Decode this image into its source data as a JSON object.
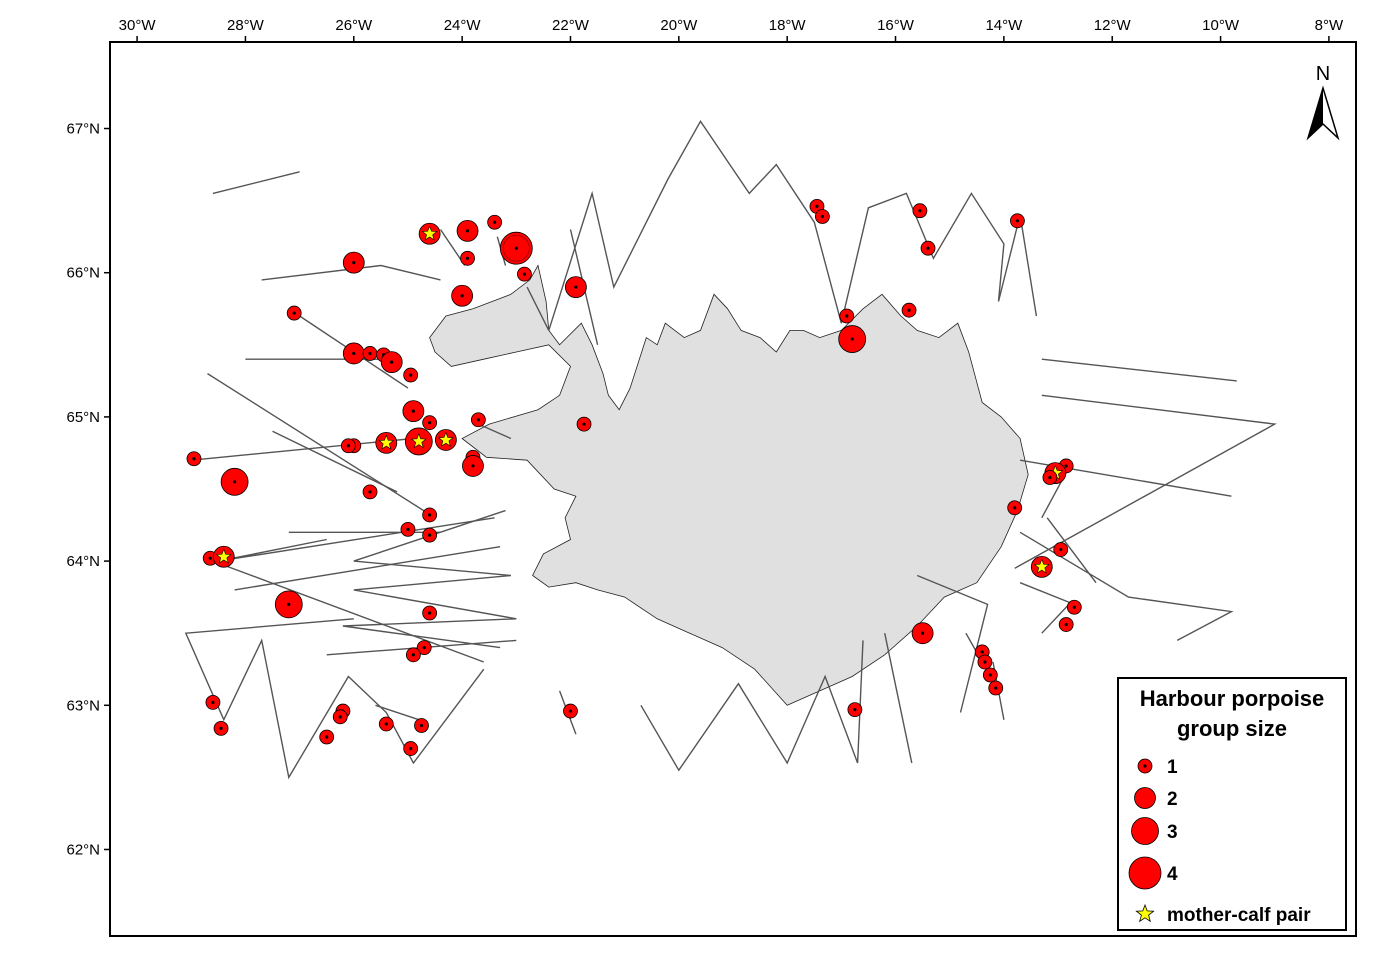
{
  "map": {
    "lon_range": [
      -30.5,
      -7.5
    ],
    "lat_range": [
      61.4,
      67.6
    ],
    "lon_ticks": [
      {
        "value": -30,
        "label": "30°W"
      },
      {
        "value": -28,
        "label": "28°W"
      },
      {
        "value": -26,
        "label": "26°W"
      },
      {
        "value": -24,
        "label": "24°W"
      },
      {
        "value": -22,
        "label": "22°W"
      },
      {
        "value": -20,
        "label": "20°W"
      },
      {
        "value": -18,
        "label": "18°W"
      },
      {
        "value": -16,
        "label": "16°W"
      },
      {
        "value": -14,
        "label": "14°W"
      },
      {
        "value": -12,
        "label": "12°W"
      },
      {
        "value": -10,
        "label": "10°W"
      },
      {
        "value": -8,
        "label": "8°W"
      }
    ],
    "lat_ticks": [
      {
        "value": 62,
        "label": "62°N"
      },
      {
        "value": 63,
        "label": "63°N"
      },
      {
        "value": 64,
        "label": "64°N"
      },
      {
        "value": 65,
        "label": "65°N"
      },
      {
        "value": 66,
        "label": "66°N"
      },
      {
        "value": 67,
        "label": "67°N"
      }
    ],
    "north_label": "N",
    "land_color": "#e0e0e0",
    "track_color": "#555555",
    "marker_color": "#ff0000",
    "star_color": "#ffff00",
    "land": [
      [
        -24.6,
        65.55
      ],
      [
        -24.3,
        65.7
      ],
      [
        -23.8,
        65.75
      ],
      [
        -23.1,
        65.85
      ],
      [
        -22.75,
        65.95
      ],
      [
        -22.6,
        66.05
      ],
      [
        -22.45,
        65.8
      ],
      [
        -22.4,
        65.6
      ],
      [
        -22.2,
        65.5
      ],
      [
        -21.8,
        65.65
      ],
      [
        -21.6,
        65.5
      ],
      [
        -21.4,
        65.3
      ],
      [
        -21.3,
        65.15
      ],
      [
        -21.1,
        65.05
      ],
      [
        -20.9,
        65.2
      ],
      [
        -20.6,
        65.55
      ],
      [
        -20.4,
        65.5
      ],
      [
        -20.25,
        65.65
      ],
      [
        -19.9,
        65.55
      ],
      [
        -19.6,
        65.6
      ],
      [
        -19.35,
        65.85
      ],
      [
        -19.1,
        65.75
      ],
      [
        -18.85,
        65.6
      ],
      [
        -18.5,
        65.55
      ],
      [
        -18.2,
        65.45
      ],
      [
        -17.95,
        65.6
      ],
      [
        -17.7,
        65.6
      ],
      [
        -17.4,
        65.55
      ],
      [
        -17.0,
        65.6
      ],
      [
        -16.6,
        65.75
      ],
      [
        -16.25,
        65.85
      ],
      [
        -15.9,
        65.7
      ],
      [
        -15.6,
        65.6
      ],
      [
        -15.2,
        65.55
      ],
      [
        -14.85,
        65.65
      ],
      [
        -14.65,
        65.45
      ],
      [
        -14.4,
        65.1
      ],
      [
        -14.05,
        65.0
      ],
      [
        -13.7,
        64.85
      ],
      [
        -13.55,
        64.6
      ],
      [
        -13.75,
        64.35
      ],
      [
        -14.05,
        64.1
      ],
      [
        -14.5,
        63.85
      ],
      [
        -15.1,
        63.75
      ],
      [
        -15.6,
        63.55
      ],
      [
        -16.2,
        63.35
      ],
      [
        -16.8,
        63.2
      ],
      [
        -17.4,
        63.1
      ],
      [
        -18.0,
        63.0
      ],
      [
        -18.6,
        63.25
      ],
      [
        -19.2,
        63.4
      ],
      [
        -19.8,
        63.5
      ],
      [
        -20.4,
        63.6
      ],
      [
        -21.0,
        63.75
      ],
      [
        -21.5,
        63.8
      ],
      [
        -21.9,
        63.85
      ],
      [
        -22.4,
        63.82
      ],
      [
        -22.7,
        63.9
      ],
      [
        -22.5,
        64.05
      ],
      [
        -22.0,
        64.15
      ],
      [
        -22.1,
        64.3
      ],
      [
        -21.9,
        64.45
      ],
      [
        -22.3,
        64.5
      ],
      [
        -22.8,
        64.7
      ],
      [
        -23.55,
        64.72
      ],
      [
        -24.0,
        64.85
      ],
      [
        -23.5,
        64.95
      ],
      [
        -22.6,
        65.05
      ],
      [
        -22.2,
        65.15
      ],
      [
        -22.0,
        65.35
      ],
      [
        -22.4,
        65.5
      ],
      [
        -23.0,
        65.45
      ],
      [
        -23.6,
        65.4
      ],
      [
        -24.2,
        65.35
      ],
      [
        -24.5,
        65.45
      ]
    ],
    "tracks": [
      [
        [
          -27.0,
          66.7
        ],
        [
          -28.6,
          66.55
        ]
      ],
      [
        [
          -22.4,
          65.6
        ],
        [
          -21.6,
          66.55
        ],
        [
          -21.2,
          65.9
        ],
        [
          -20.2,
          66.65
        ],
        [
          -19.6,
          67.05
        ],
        [
          -18.7,
          66.55
        ],
        [
          -18.2,
          66.75
        ],
        [
          -17.5,
          66.35
        ],
        [
          -17.0,
          65.65
        ],
        [
          -16.5,
          66.45
        ],
        [
          -15.8,
          66.55
        ],
        [
          -15.3,
          66.1
        ],
        [
          -14.6,
          66.55
        ],
        [
          -14.0,
          66.2
        ],
        [
          -14.1,
          65.8
        ],
        [
          -13.7,
          66.4
        ],
        [
          -13.4,
          65.7
        ]
      ],
      [
        [
          -22.0,
          66.3
        ],
        [
          -21.5,
          65.5
        ]
      ],
      [
        [
          -22.4,
          65.6
        ],
        [
          -22.8,
          65.9
        ]
      ],
      [
        [
          -24.4,
          65.95
        ],
        [
          -25.5,
          66.05
        ],
        [
          -27.7,
          65.95
        ]
      ],
      [
        [
          -25.5,
          65.4
        ],
        [
          -28.0,
          65.4
        ]
      ],
      [
        [
          -25.0,
          65.2
        ],
        [
          -27.0,
          65.7
        ]
      ],
      [
        [
          -24.9,
          64.85
        ],
        [
          -29.0,
          64.7
        ]
      ],
      [
        [
          -24.5,
          64.3
        ],
        [
          -28.7,
          65.3
        ]
      ],
      [
        [
          -25.2,
          64.48
        ],
        [
          -27.5,
          64.9
        ]
      ],
      [
        [
          -24.4,
          64.2
        ],
        [
          -27.2,
          64.2
        ]
      ],
      [
        [
          -23.2,
          64.35
        ],
        [
          -26.0,
          64.0
        ],
        [
          -23.1,
          63.9
        ],
        [
          -26.0,
          63.8
        ],
        [
          -23.0,
          63.6
        ],
        [
          -26.2,
          63.55
        ],
        [
          -23.3,
          63.4
        ]
      ],
      [
        [
          -23.4,
          64.3
        ],
        [
          -28.5,
          64.0
        ],
        [
          -26.5,
          64.15
        ]
      ],
      [
        [
          -23.3,
          64.1
        ],
        [
          -28.2,
          63.8
        ]
      ],
      [
        [
          -23.6,
          63.3
        ],
        [
          -28.6,
          64.0
        ]
      ],
      [
        [
          -23.0,
          63.45
        ],
        [
          -26.5,
          63.35
        ]
      ],
      [
        [
          -26.0,
          63.6
        ],
        [
          -29.1,
          63.5
        ],
        [
          -28.4,
          62.9
        ],
        [
          -27.7,
          63.45
        ],
        [
          -27.2,
          62.5
        ],
        [
          -26.1,
          63.2
        ],
        [
          -25.4,
          62.95
        ],
        [
          -24.9,
          62.6
        ],
        [
          -23.6,
          63.25
        ]
      ],
      [
        [
          -24.8,
          62.9
        ],
        [
          -25.6,
          63.0
        ]
      ],
      [
        [
          -22.2,
          63.1
        ],
        [
          -21.9,
          62.8
        ]
      ],
      [
        [
          -20.7,
          63.0
        ],
        [
          -20.0,
          62.55
        ],
        [
          -18.9,
          63.15
        ],
        [
          -18.0,
          62.6
        ],
        [
          -17.3,
          63.2
        ],
        [
          -16.7,
          62.6
        ],
        [
          -16.6,
          63.45
        ]
      ],
      [
        [
          -14.4,
          63.3
        ],
        [
          -14.7,
          63.5
        ]
      ],
      [
        [
          -15.6,
          63.9
        ],
        [
          -14.3,
          63.7
        ],
        [
          -14.8,
          62.95
        ]
      ],
      [
        [
          -14.0,
          62.9
        ],
        [
          -14.2,
          63.3
        ]
      ],
      [
        [
          -16.2,
          63.5
        ],
        [
          -15.7,
          62.6
        ]
      ],
      [
        [
          -13.7,
          64.7
        ],
        [
          -9.8,
          64.45
        ]
      ],
      [
        [
          -13.3,
          64.3
        ],
        [
          -12.8,
          64.65
        ]
      ],
      [
        [
          -13.7,
          64.2
        ],
        [
          -11.7,
          63.75
        ],
        [
          -9.8,
          63.65
        ],
        [
          -10.8,
          63.45
        ]
      ],
      [
        [
          -13.8,
          63.95
        ],
        [
          -9.0,
          64.95
        ],
        [
          -13.3,
          65.15
        ]
      ],
      [
        [
          -13.3,
          65.4
        ],
        [
          -9.7,
          65.25
        ]
      ],
      [
        [
          -13.7,
          63.85
        ],
        [
          -12.7,
          63.7
        ]
      ],
      [
        [
          -13.3,
          63.5
        ],
        [
          -12.8,
          63.7
        ]
      ],
      [
        [
          -13.2,
          64.3
        ],
        [
          -12.3,
          63.85
        ]
      ],
      [
        [
          -23.7,
          64.95
        ],
        [
          -23.1,
          64.85
        ]
      ],
      [
        [
          -23.95,
          66.05
        ],
        [
          -24.4,
          66.3
        ]
      ],
      [
        [
          -23.35,
          66.25
        ],
        [
          -23.2,
          66.05
        ]
      ]
    ],
    "sightings": [
      {
        "lon": -24.6,
        "lat": 66.27,
        "size": 2,
        "calf": true
      },
      {
        "lon": -23.9,
        "lat": 66.29,
        "size": 2,
        "calf": false
      },
      {
        "lon": -23.4,
        "lat": 66.35,
        "size": 1,
        "calf": false
      },
      {
        "lon": -23.0,
        "lat": 66.17,
        "size": 4,
        "calf": false
      },
      {
        "lon": -23.9,
        "lat": 66.1,
        "size": 1,
        "calf": false
      },
      {
        "lon": -22.85,
        "lat": 65.99,
        "size": 1,
        "calf": false
      },
      {
        "lon": -21.9,
        "lat": 65.9,
        "size": 2,
        "calf": false
      },
      {
        "lon": -24.0,
        "lat": 65.84,
        "size": 2,
        "calf": false
      },
      {
        "lon": -26.0,
        "lat": 66.07,
        "size": 2,
        "calf": false
      },
      {
        "lon": -27.1,
        "lat": 65.72,
        "size": 1,
        "calf": false
      },
      {
        "lon": -26.0,
        "lat": 65.44,
        "size": 2,
        "calf": false
      },
      {
        "lon": -25.7,
        "lat": 65.44,
        "size": 1,
        "calf": false
      },
      {
        "lon": -25.45,
        "lat": 65.43,
        "size": 1,
        "calf": false
      },
      {
        "lon": -25.3,
        "lat": 65.38,
        "size": 2,
        "calf": false
      },
      {
        "lon": -24.95,
        "lat": 65.29,
        "size": 1,
        "calf": false
      },
      {
        "lon": -24.9,
        "lat": 65.04,
        "size": 2,
        "calf": false
      },
      {
        "lon": -24.6,
        "lat": 64.96,
        "size": 1,
        "calf": false
      },
      {
        "lon": -23.7,
        "lat": 64.98,
        "size": 1,
        "calf": false
      },
      {
        "lon": -25.4,
        "lat": 64.82,
        "size": 2,
        "calf": true
      },
      {
        "lon": -24.8,
        "lat": 64.83,
        "size": 3,
        "calf": true
      },
      {
        "lon": -24.3,
        "lat": 64.84,
        "size": 2,
        "calf": true
      },
      {
        "lon": -26.0,
        "lat": 64.8,
        "size": 1,
        "calf": false
      },
      {
        "lon": -26.1,
        "lat": 64.8,
        "size": 1,
        "calf": false
      },
      {
        "lon": -23.8,
        "lat": 64.72,
        "size": 1,
        "calf": false
      },
      {
        "lon": -23.8,
        "lat": 64.66,
        "size": 2,
        "calf": false
      },
      {
        "lon": -28.95,
        "lat": 64.71,
        "size": 1,
        "calf": false
      },
      {
        "lon": -28.2,
        "lat": 64.55,
        "size": 3,
        "calf": false
      },
      {
        "lon": -25.7,
        "lat": 64.48,
        "size": 1,
        "calf": false
      },
      {
        "lon": -24.6,
        "lat": 64.32,
        "size": 1,
        "calf": false
      },
      {
        "lon": -25.0,
        "lat": 64.22,
        "size": 1,
        "calf": false
      },
      {
        "lon": -24.6,
        "lat": 64.18,
        "size": 1,
        "calf": false
      },
      {
        "lon": -28.65,
        "lat": 64.02,
        "size": 1,
        "calf": false
      },
      {
        "lon": -28.4,
        "lat": 64.03,
        "size": 2,
        "calf": true
      },
      {
        "lon": -27.2,
        "lat": 63.7,
        "size": 3,
        "calf": false
      },
      {
        "lon": -24.6,
        "lat": 63.64,
        "size": 1,
        "calf": false
      },
      {
        "lon": -24.7,
        "lat": 63.4,
        "size": 1,
        "calf": false
      },
      {
        "lon": -24.9,
        "lat": 63.35,
        "size": 1,
        "calf": false
      },
      {
        "lon": -28.6,
        "lat": 63.02,
        "size": 1,
        "calf": false
      },
      {
        "lon": -28.45,
        "lat": 62.84,
        "size": 1,
        "calf": false
      },
      {
        "lon": -26.2,
        "lat": 62.96,
        "size": 1,
        "calf": false
      },
      {
        "lon": -26.25,
        "lat": 62.92,
        "size": 1,
        "calf": false
      },
      {
        "lon": -26.5,
        "lat": 62.78,
        "size": 1,
        "calf": false
      },
      {
        "lon": -25.4,
        "lat": 62.87,
        "size": 1,
        "calf": false
      },
      {
        "lon": -24.75,
        "lat": 62.86,
        "size": 1,
        "calf": false
      },
      {
        "lon": -24.95,
        "lat": 62.7,
        "size": 1,
        "calf": false
      },
      {
        "lon": -21.75,
        "lat": 64.95,
        "size": 1,
        "calf": false
      },
      {
        "lon": -22.0,
        "lat": 62.96,
        "size": 1,
        "calf": false
      },
      {
        "lon": -17.45,
        "lat": 66.46,
        "size": 1,
        "calf": false
      },
      {
        "lon": -17.35,
        "lat": 66.39,
        "size": 1,
        "calf": false
      },
      {
        "lon": -15.55,
        "lat": 66.43,
        "size": 1,
        "calf": false
      },
      {
        "lon": -15.4,
        "lat": 66.17,
        "size": 1,
        "calf": false
      },
      {
        "lon": -13.75,
        "lat": 66.36,
        "size": 1,
        "calf": false
      },
      {
        "lon": -16.9,
        "lat": 65.7,
        "size": 1,
        "calf": false
      },
      {
        "lon": -16.8,
        "lat": 65.54,
        "size": 3,
        "calf": false
      },
      {
        "lon": -15.75,
        "lat": 65.74,
        "size": 1,
        "calf": false
      },
      {
        "lon": -12.85,
        "lat": 64.66,
        "size": 1,
        "calf": false
      },
      {
        "lon": -13.05,
        "lat": 64.61,
        "size": 2,
        "calf": true
      },
      {
        "lon": -13.15,
        "lat": 64.58,
        "size": 1,
        "calf": false
      },
      {
        "lon": -13.8,
        "lat": 64.37,
        "size": 1,
        "calf": false
      },
      {
        "lon": -12.95,
        "lat": 64.08,
        "size": 1,
        "calf": false
      },
      {
        "lon": -13.3,
        "lat": 63.96,
        "size": 2,
        "calf": true
      },
      {
        "lon": -12.7,
        "lat": 63.68,
        "size": 1,
        "calf": false
      },
      {
        "lon": -12.85,
        "lat": 63.56,
        "size": 1,
        "calf": false
      },
      {
        "lon": -15.5,
        "lat": 63.5,
        "size": 2,
        "calf": false
      },
      {
        "lon": -14.4,
        "lat": 63.37,
        "size": 1,
        "calf": false
      },
      {
        "lon": -14.35,
        "lat": 63.3,
        "size": 1,
        "calf": false
      },
      {
        "lon": -14.25,
        "lat": 63.21,
        "size": 1,
        "calf": false
      },
      {
        "lon": -14.15,
        "lat": 63.12,
        "size": 1,
        "calf": false
      },
      {
        "lon": -16.75,
        "lat": 62.97,
        "size": 1,
        "calf": false
      }
    ]
  },
  "legend": {
    "title_line1": "Harbour porpoise",
    "title_line2": "group size",
    "items": [
      {
        "label": "1",
        "size": 1
      },
      {
        "label": "2",
        "size": 2
      },
      {
        "label": "3",
        "size": 3
      },
      {
        "label": "4",
        "size": 4
      }
    ],
    "star_label": "mother-calf pair"
  }
}
